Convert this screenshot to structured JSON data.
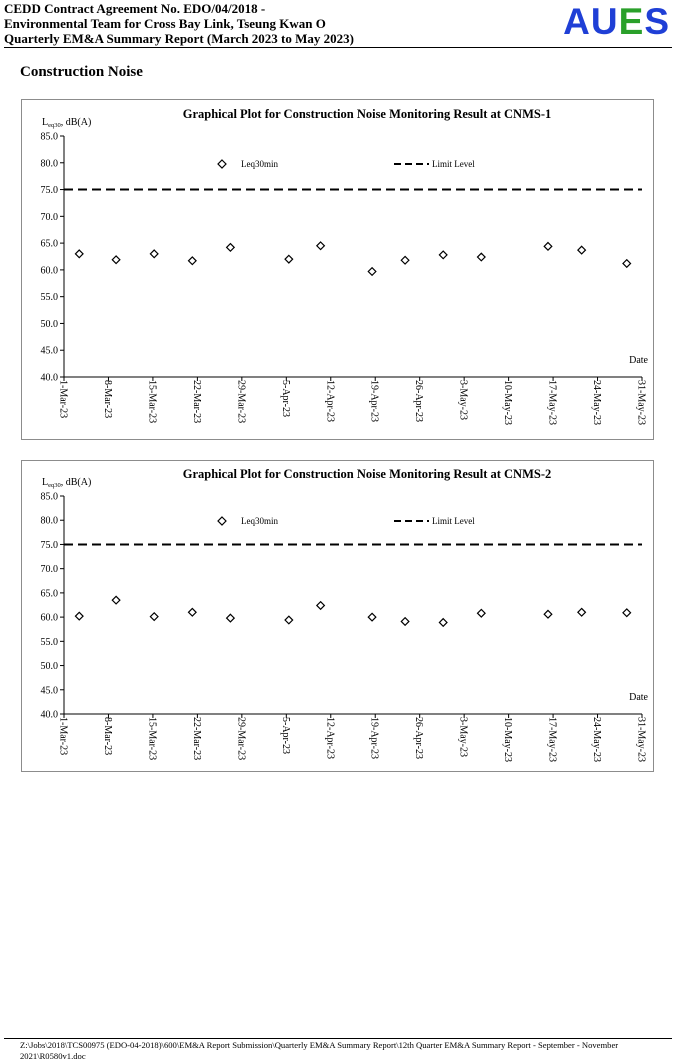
{
  "header": {
    "line1": "CEDD Contract Agreement No. EDO/04/2018 -",
    "line2": "Environmental Team for Cross Bay Link, Tseung Kwan O",
    "line3": "Quarterly EM&A Summary Report (March 2023 to May 2023)",
    "logo": {
      "A": "A",
      "U": "U",
      "E": "E",
      "S": "S",
      "colors": {
        "A": "#1f3fd6",
        "U": "#1f3fd6",
        "E": "#2aa02a",
        "S": "#1f3fd6"
      }
    }
  },
  "section_title": "Construction Noise",
  "chart_data": [
    {
      "type": "scatter",
      "title": "Graphical Plot for Construction Noise Monitoring Result at CNMS-1",
      "ylabel_main": "L",
      "ylabel_sub": "eq30",
      "ylabel_rest": ", dB(A)",
      "xlabel": "Date",
      "ylim": [
        40.0,
        85.0
      ],
      "yticks": [
        "40.0",
        "45.0",
        "50.0",
        "55.0",
        "60.0",
        "65.0",
        "70.0",
        "75.0",
        "80.0",
        "85.0"
      ],
      "xticks": [
        "1-Mar-23",
        "8-Mar-23",
        "15-Mar-23",
        "22-Mar-23",
        "29-Mar-23",
        "5-Apr-23",
        "12-Apr-23",
        "19-Apr-23",
        "26-Apr-23",
        "3-May-23",
        "10-May-23",
        "17-May-23",
        "24-May-23",
        "31-May-23"
      ],
      "x_range_days": [
        0,
        91
      ],
      "series": [
        {
          "name": "Leq30min",
          "marker": "diamond",
          "points": [
            {
              "x": "2023-03-03",
              "day": 2.4,
              "y": 63.0
            },
            {
              "x": "2023-03-09",
              "day": 8.2,
              "y": 61.9
            },
            {
              "x": "2023-03-15",
              "day": 14.2,
              "y": 63.0
            },
            {
              "x": "2023-03-21",
              "day": 20.2,
              "y": 61.7
            },
            {
              "x": "2023-03-27",
              "day": 26.2,
              "y": 64.2
            },
            {
              "x": "2023-04-06",
              "day": 35.4,
              "y": 62.0
            },
            {
              "x": "2023-04-11",
              "day": 40.4,
              "y": 64.5
            },
            {
              "x": "2023-04-19",
              "day": 48.5,
              "y": 59.7
            },
            {
              "x": "2023-04-24",
              "day": 53.7,
              "y": 61.8
            },
            {
              "x": "2023-04-30",
              "day": 59.7,
              "y": 62.8
            },
            {
              "x": "2023-05-06",
              "day": 65.7,
              "y": 62.4
            },
            {
              "x": "2023-05-17",
              "day": 76.2,
              "y": 64.4
            },
            {
              "x": "2023-05-22",
              "day": 81.5,
              "y": 63.7
            },
            {
              "x": "2023-05-29",
              "day": 88.6,
              "y": 61.2
            }
          ]
        },
        {
          "name": "Limit Level",
          "style": "dashed",
          "value": 75.0
        }
      ],
      "legend": "top"
    },
    {
      "type": "scatter",
      "title": "Graphical Plot for Construction Noise Monitoring Result at CNMS-2",
      "ylabel_main": "L",
      "ylabel_sub": "eq30",
      "ylabel_rest": ", dB(A)",
      "xlabel": "Date",
      "ylim": [
        40.0,
        85.0
      ],
      "yticks": [
        "40.0",
        "45.0",
        "50.0",
        "55.0",
        "60.0",
        "65.0",
        "70.0",
        "75.0",
        "80.0",
        "85.0"
      ],
      "xticks": [
        "1-Mar-23",
        "8-Mar-23",
        "15-Mar-23",
        "22-Mar-23",
        "29-Mar-23",
        "5-Apr-23",
        "12-Apr-23",
        "19-Apr-23",
        "26-Apr-23",
        "3-May-23",
        "10-May-23",
        "17-May-23",
        "24-May-23",
        "31-May-23"
      ],
      "x_range_days": [
        0,
        91
      ],
      "series": [
        {
          "name": "Leq30min",
          "marker": "diamond",
          "points": [
            {
              "x": "2023-03-03",
              "day": 2.4,
              "y": 60.2
            },
            {
              "x": "2023-03-09",
              "day": 8.2,
              "y": 63.5
            },
            {
              "x": "2023-03-15",
              "day": 14.2,
              "y": 60.1
            },
            {
              "x": "2023-03-21",
              "day": 20.2,
              "y": 61.0
            },
            {
              "x": "2023-03-27",
              "day": 26.2,
              "y": 59.8
            },
            {
              "x": "2023-04-06",
              "day": 35.4,
              "y": 59.4
            },
            {
              "x": "2023-04-11",
              "day": 40.4,
              "y": 62.4
            },
            {
              "x": "2023-04-19",
              "day": 48.5,
              "y": 60.0
            },
            {
              "x": "2023-04-24",
              "day": 53.7,
              "y": 59.1
            },
            {
              "x": "2023-04-30",
              "day": 59.7,
              "y": 58.9
            },
            {
              "x": "2023-05-06",
              "day": 65.7,
              "y": 60.8
            },
            {
              "x": "2023-05-17",
              "day": 76.2,
              "y": 60.6
            },
            {
              "x": "2023-05-22",
              "day": 81.5,
              "y": 61.0
            },
            {
              "x": "2023-05-29",
              "day": 88.6,
              "y": 60.9
            }
          ]
        },
        {
          "name": "Limit Level",
          "style": "dashed",
          "value": 75.0
        }
      ],
      "legend": "top"
    }
  ],
  "footer": {
    "line1": "Z:\\Jobs\\2018\\TCS00975 (EDO-04-2018)\\600\\EM&A Report Submission\\Quarterly EM&A Summary Report\\12th Quarter EM&A Summary Report - September - November",
    "line2": "2021\\R0580v1.doc"
  }
}
